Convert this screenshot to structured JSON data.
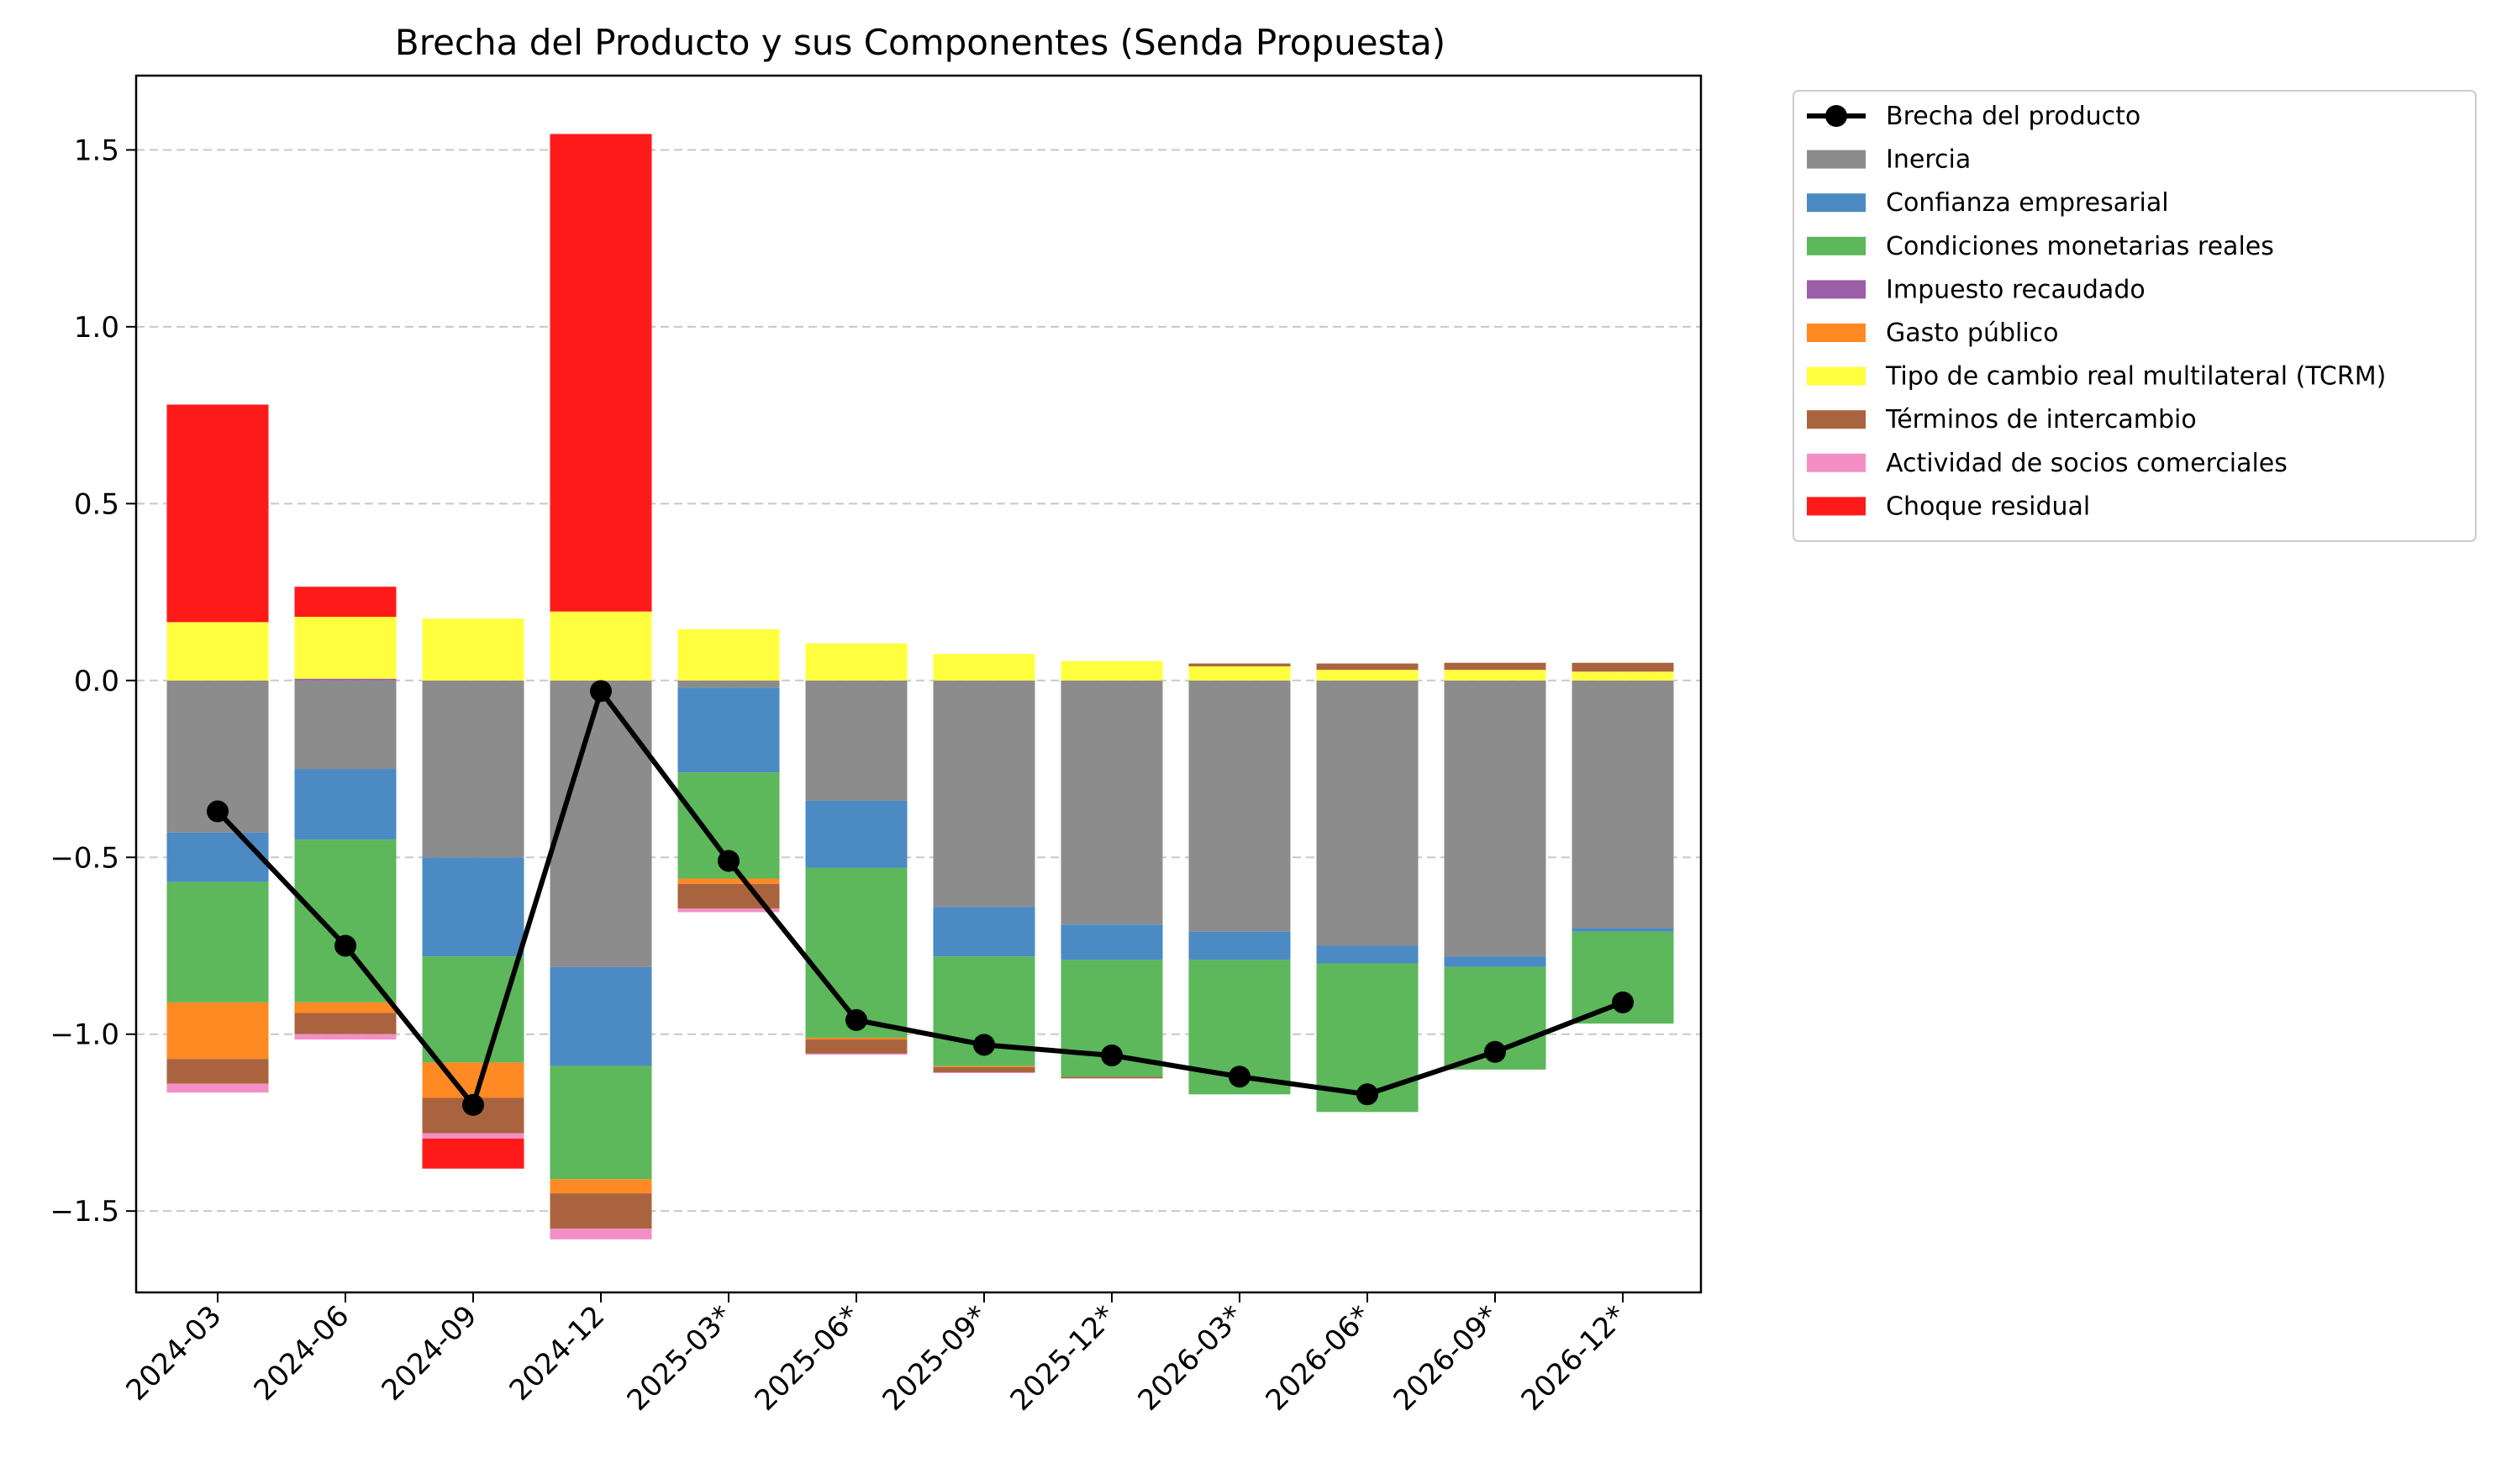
{
  "chart_data": {
    "type": "bar",
    "subtype": "stacked-bar-with-line",
    "title": "Brecha del Producto y sus Componentes (Senda Propuesta)",
    "xlabel": "",
    "ylabel": "",
    "ylim": [
      -1.73,
      1.71
    ],
    "yticks": [
      -1.5,
      -1.0,
      -0.5,
      0.0,
      0.5,
      1.0,
      1.5
    ],
    "ytick_labels": [
      "−1.5",
      "−1.0",
      "−0.5",
      "0.0",
      "0.5",
      "1.0",
      "1.5"
    ],
    "grid": "horizontal dashed",
    "legend_position": "outside right, top",
    "categories": [
      "2024-03",
      "2024-06",
      "2024-09",
      "2024-12",
      "2025-03*",
      "2025-06*",
      "2025-09*",
      "2025-12*",
      "2026-03*",
      "2026-06*",
      "2026-09*",
      "2026-12*"
    ],
    "series": [
      {
        "name": "Inercia",
        "color": "#8c8c8c",
        "values": [
          -0.43,
          -0.25,
          -0.5,
          -0.81,
          -0.02,
          -0.34,
          -0.64,
          -0.69,
          -0.71,
          -0.75,
          -0.78,
          -0.7
        ]
      },
      {
        "name": "Confianza empresarial",
        "color": "#4c8ac3",
        "values": [
          -0.14,
          -0.2,
          -0.28,
          -0.28,
          -0.24,
          -0.19,
          -0.14,
          -0.1,
          -0.08,
          -0.05,
          -0.03,
          -0.01
        ]
      },
      {
        "name": "Condiciones monetarias reales",
        "color": "#5db75b",
        "values": [
          -0.34,
          -0.46,
          -0.3,
          -0.32,
          -0.3,
          -0.48,
          -0.31,
          -0.33,
          -0.38,
          -0.42,
          -0.29,
          -0.26
        ]
      },
      {
        "name": "Impuesto recaudado",
        "color": "#9b5ea9",
        "values": [
          0.0,
          0.005,
          0.0,
          0.0,
          0.0,
          0.0,
          0.0,
          0.0,
          0.0,
          0.0,
          0.0,
          0.0
        ]
      },
      {
        "name": "Gasto público",
        "color": "#ff8a24",
        "values": [
          -0.16,
          -0.03,
          -0.1,
          -0.04,
          -0.015,
          -0.005,
          -0.003,
          0.0,
          0.0,
          0.0,
          0.0,
          0.0
        ]
      },
      {
        "name": "Tipo de cambio real multilateral (TCRM)",
        "color": "#ffff40",
        "values": [
          0.165,
          0.175,
          0.175,
          0.195,
          0.145,
          0.105,
          0.075,
          0.055,
          0.04,
          0.03,
          0.03,
          0.025
        ]
      },
      {
        "name": "Términos de intercambio",
        "color": "#a9643f",
        "values": [
          -0.07,
          -0.06,
          -0.1,
          -0.1,
          -0.07,
          -0.04,
          -0.015,
          -0.005,
          0.008,
          0.018,
          0.02,
          0.025
        ]
      },
      {
        "name": "Actividad de socios comerciales",
        "color": "#f48fc6",
        "values": [
          -0.025,
          -0.015,
          -0.015,
          -0.03,
          -0.01,
          -0.003,
          -0.002,
          0.0,
          0.0,
          0.0,
          0.0,
          0.0
        ]
      },
      {
        "name": "Choque residual",
        "color": "#ff1a1a",
        "values": [
          0.615,
          0.085,
          -0.085,
          1.35,
          0.0,
          0.0,
          0.0,
          0.0,
          0.0,
          0.0,
          0.0,
          0.0
        ]
      }
    ],
    "line": {
      "name": "Brecha del producto",
      "color": "#000000",
      "values": [
        -0.37,
        -0.75,
        -1.2,
        -0.03,
        -0.51,
        -0.96,
        -1.03,
        -1.06,
        -1.12,
        -1.17,
        -1.05,
        -0.91
      ]
    }
  }
}
